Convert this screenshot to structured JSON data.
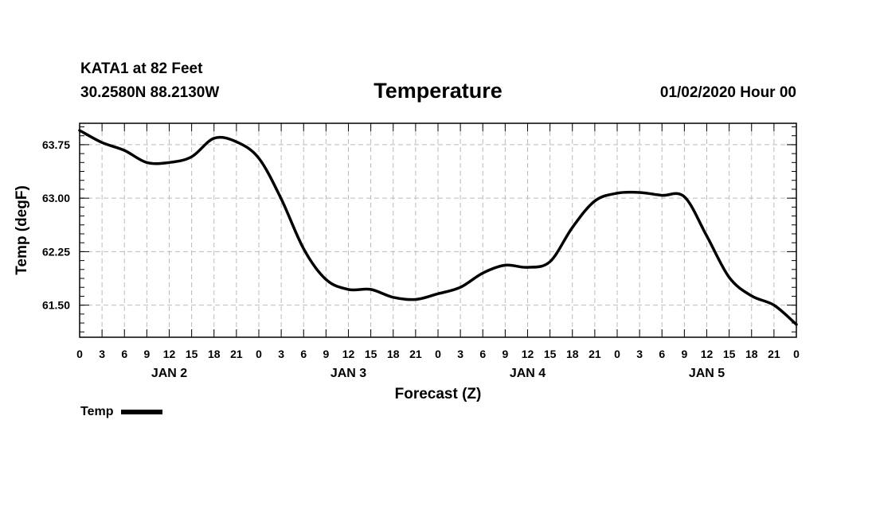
{
  "header": {
    "station": "KATA1 at 82 Feet",
    "coords": "30.2580N 88.2130W",
    "title": "Temperature",
    "datetime": "01/02/2020 Hour 00"
  },
  "chart_data": {
    "type": "line",
    "title": "Temperature",
    "xlabel": "Forecast (Z)",
    "ylabel": "Temp (degF)",
    "ylim": [
      61.05,
      64.05
    ],
    "yticks": [
      61.5,
      62.25,
      63.0,
      63.75
    ],
    "ytick_labels": [
      "61.50",
      "62.25",
      "63.00",
      "63.75"
    ],
    "xlim": [
      0,
      96
    ],
    "xtick_labels": [
      "0",
      "3",
      "6",
      "9",
      "12",
      "15",
      "18",
      "21",
      "0",
      "3",
      "6",
      "9",
      "12",
      "15",
      "18",
      "21",
      "0",
      "3",
      "6",
      "9",
      "12",
      "15",
      "18",
      "21",
      "0",
      "3",
      "6",
      "9",
      "12",
      "15",
      "18",
      "21",
      "0"
    ],
    "day_labels": [
      "JAN 2",
      "JAN 3",
      "JAN 4",
      "JAN 5"
    ],
    "grid": true,
    "legend_position": "bottom-left",
    "series": [
      {
        "name": "Temp",
        "color": "#000000",
        "x": [
          0,
          3,
          6,
          9,
          12,
          15,
          18,
          21,
          24,
          27,
          30,
          33,
          36,
          39,
          42,
          45,
          48,
          51,
          54,
          57,
          60,
          63,
          66,
          69,
          72,
          75,
          78,
          81,
          84,
          87,
          90,
          93,
          96
        ],
        "values": [
          63.95,
          63.78,
          63.67,
          63.5,
          63.5,
          63.58,
          63.84,
          63.79,
          63.56,
          62.99,
          62.29,
          61.86,
          61.72,
          61.72,
          61.61,
          61.58,
          61.66,
          61.75,
          61.95,
          62.06,
          62.03,
          62.11,
          62.59,
          62.96,
          63.07,
          63.08,
          63.04,
          63.02,
          62.47,
          61.89,
          61.63,
          61.5,
          61.23
        ]
      }
    ]
  },
  "legend": {
    "label": "Temp"
  }
}
